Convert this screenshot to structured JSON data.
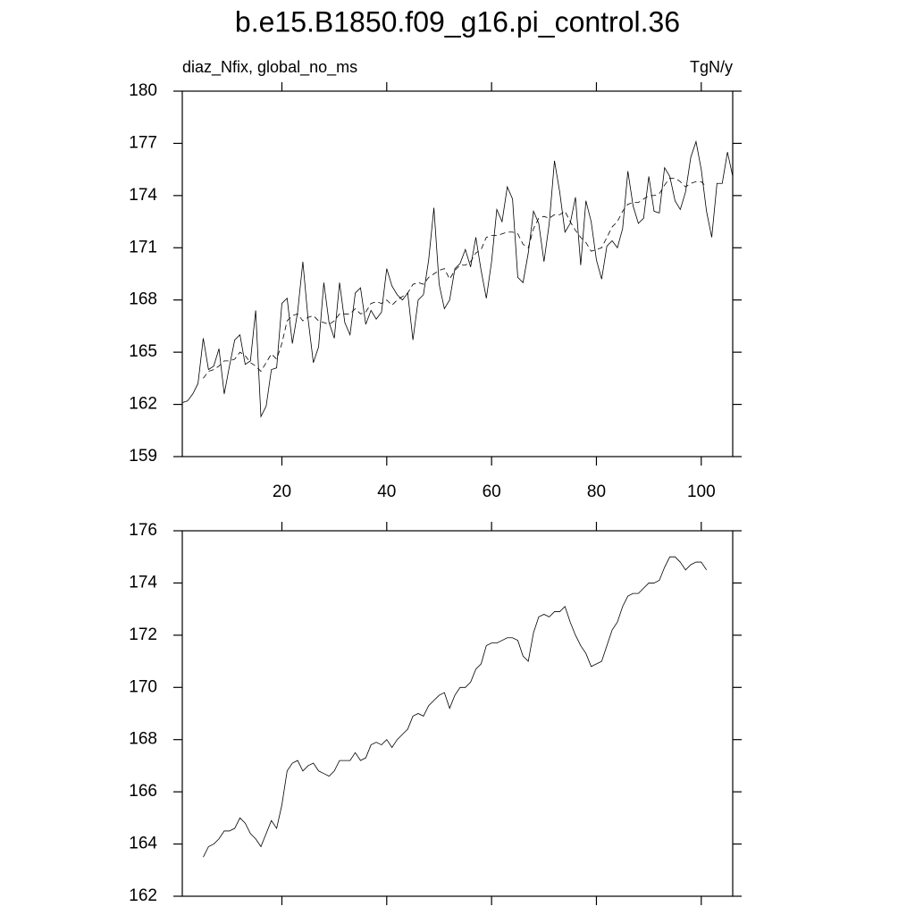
{
  "chart_data": [
    {
      "type": "line",
      "title": "b.e15.B1850.f09_g16.pi_control.36",
      "subtitle_left": "diaz_Nfix, global_no_ms",
      "subtitle_right": "TgN/y",
      "x": [
        1,
        2,
        3,
        4,
        5,
        6,
        7,
        8,
        9,
        10,
        11,
        12,
        13,
        14,
        15,
        16,
        17,
        18,
        19,
        20,
        21,
        22,
        23,
        24,
        25,
        26,
        27,
        28,
        29,
        30,
        31,
        32,
        33,
        34,
        35,
        36,
        37,
        38,
        39,
        40,
        41,
        42,
        43,
        44,
        45,
        46,
        47,
        48,
        49,
        50,
        51,
        52,
        53,
        54,
        55,
        56,
        57,
        58,
        59,
        60,
        61,
        62,
        63,
        64,
        65,
        66,
        67,
        68,
        69,
        70,
        71,
        72,
        73,
        74,
        75,
        76,
        77,
        78,
        79,
        80,
        81,
        82,
        83,
        84,
        85,
        86,
        87,
        88,
        89,
        90,
        91,
        92,
        93,
        94,
        95,
        96,
        97,
        98,
        99,
        100,
        101,
        102,
        103,
        104,
        105,
        106
      ],
      "series": [
        {
          "color": "#000000",
          "line_style": "solid",
          "values": [
            162.1,
            162.2,
            162.6,
            163.2,
            165.8,
            164.0,
            164.2,
            165.2,
            162.6,
            164.2,
            165.7,
            166.0,
            164.3,
            164.5,
            167.4,
            161.3,
            161.9,
            164.0,
            164.1,
            167.8,
            168.1,
            165.5,
            167.3,
            170.2,
            166.9,
            164.4,
            165.3,
            169.0,
            166.7,
            165.8,
            169.0,
            166.7,
            166.0,
            168.4,
            168.7,
            166.6,
            167.4,
            166.9,
            167.3,
            169.8,
            168.8,
            168.3,
            168.0,
            168.4,
            165.7,
            168.0,
            168.3,
            170.3,
            173.3,
            168.9,
            167.5,
            168.0,
            169.8,
            170.1,
            170.9,
            169.9,
            171.6,
            169.7,
            168.1,
            170.2,
            173.2,
            172.5,
            174.5,
            173.8,
            169.3,
            169.0,
            170.7,
            173.1,
            172.4,
            170.2,
            172.4,
            176.0,
            174.2,
            171.9,
            172.4,
            173.9,
            170.0,
            173.7,
            172.5,
            170.3,
            169.2,
            171.1,
            171.4,
            171.0,
            172.1,
            175.4,
            173.4,
            172.4,
            172.7,
            175.1,
            173.1,
            173.0,
            175.6,
            175.1,
            173.7,
            173.2,
            174.2,
            176.2,
            177.1,
            175.5,
            173.1,
            171.6,
            174.7,
            174.7,
            176.5,
            175.1
          ]
        },
        {
          "color": "#000000",
          "line_style": "dashed",
          "values": [
            null,
            null,
            null,
            null,
            163.5,
            163.9,
            164.0,
            164.2,
            164.5,
            164.5,
            164.6,
            165.0,
            164.8,
            164.4,
            164.2,
            163.9,
            164.4,
            164.9,
            164.6,
            165.5,
            166.8,
            167.1,
            167.2,
            166.8,
            167.0,
            167.1,
            166.8,
            166.7,
            166.6,
            166.8,
            167.2,
            167.2,
            167.2,
            167.5,
            167.2,
            167.3,
            167.8,
            167.9,
            167.8,
            168.0,
            167.7,
            168.0,
            168.2,
            168.4,
            168.9,
            169.0,
            168.9,
            169.3,
            169.5,
            169.7,
            169.8,
            169.2,
            169.7,
            170.0,
            170.0,
            170.2,
            170.7,
            170.9,
            171.6,
            171.7,
            171.7,
            171.8,
            171.9,
            171.9,
            171.8,
            171.2,
            171.0,
            172.1,
            172.7,
            172.8,
            172.7,
            172.9,
            172.9,
            173.1,
            172.5,
            172.0,
            171.6,
            171.3,
            170.8,
            170.9,
            171.0,
            171.6,
            172.2,
            172.5,
            173.1,
            173.5,
            173.6,
            173.6,
            173.8,
            174.0,
            174.0,
            174.1,
            174.6,
            175.0,
            175.0,
            174.8,
            174.5,
            174.7,
            174.8,
            174.8,
            174.5,
            null,
            null,
            null,
            null,
            null
          ]
        }
      ],
      "xlim": [
        1,
        106
      ],
      "xticks": [
        20,
        40,
        60,
        80,
        100
      ],
      "show_xtick_labels": true,
      "ylim": [
        159,
        180
      ],
      "yticks": [
        159,
        162,
        165,
        168,
        171,
        174,
        177,
        180
      ]
    },
    {
      "type": "line",
      "x": [
        1,
        2,
        3,
        4,
        5,
        6,
        7,
        8,
        9,
        10,
        11,
        12,
        13,
        14,
        15,
        16,
        17,
        18,
        19,
        20,
        21,
        22,
        23,
        24,
        25,
        26,
        27,
        28,
        29,
        30,
        31,
        32,
        33,
        34,
        35,
        36,
        37,
        38,
        39,
        40,
        41,
        42,
        43,
        44,
        45,
        46,
        47,
        48,
        49,
        50,
        51,
        52,
        53,
        54,
        55,
        56,
        57,
        58,
        59,
        60,
        61,
        62,
        63,
        64,
        65,
        66,
        67,
        68,
        69,
        70,
        71,
        72,
        73,
        74,
        75,
        76,
        77,
        78,
        79,
        80,
        81,
        82,
        83,
        84,
        85,
        86,
        87,
        88,
        89,
        90,
        91,
        92,
        93,
        94,
        95,
        96,
        97,
        98,
        99,
        100,
        101,
        102,
        103,
        104,
        105,
        106
      ],
      "series": [
        {
          "color": "#000000",
          "line_style": "solid",
          "values": [
            null,
            null,
            null,
            null,
            163.5,
            163.9,
            164.0,
            164.2,
            164.5,
            164.5,
            164.6,
            165.0,
            164.8,
            164.4,
            164.2,
            163.9,
            164.4,
            164.9,
            164.6,
            165.5,
            166.8,
            167.1,
            167.2,
            166.8,
            167.0,
            167.1,
            166.8,
            166.7,
            166.6,
            166.8,
            167.2,
            167.2,
            167.2,
            167.5,
            167.2,
            167.3,
            167.8,
            167.9,
            167.8,
            168.0,
            167.7,
            168.0,
            168.2,
            168.4,
            168.9,
            169.0,
            168.9,
            169.3,
            169.5,
            169.7,
            169.8,
            169.2,
            169.7,
            170.0,
            170.0,
            170.2,
            170.7,
            170.9,
            171.6,
            171.7,
            171.7,
            171.8,
            171.9,
            171.9,
            171.8,
            171.2,
            171.0,
            172.1,
            172.7,
            172.8,
            172.7,
            172.9,
            172.9,
            173.1,
            172.5,
            172.0,
            171.6,
            171.3,
            170.8,
            170.9,
            171.0,
            171.6,
            172.2,
            172.5,
            173.1,
            173.5,
            173.6,
            173.6,
            173.8,
            174.0,
            174.0,
            174.1,
            174.6,
            175.0,
            175.0,
            174.8,
            174.5,
            174.7,
            174.8,
            174.8,
            174.5,
            null,
            null,
            null,
            null,
            null
          ]
        }
      ],
      "xlim": [
        1,
        106
      ],
      "xticks": [
        20,
        40,
        60,
        80,
        100
      ],
      "show_xtick_labels": false,
      "ylim": [
        162,
        176
      ],
      "yticks": [
        162,
        164,
        166,
        168,
        170,
        172,
        174,
        176
      ]
    }
  ]
}
